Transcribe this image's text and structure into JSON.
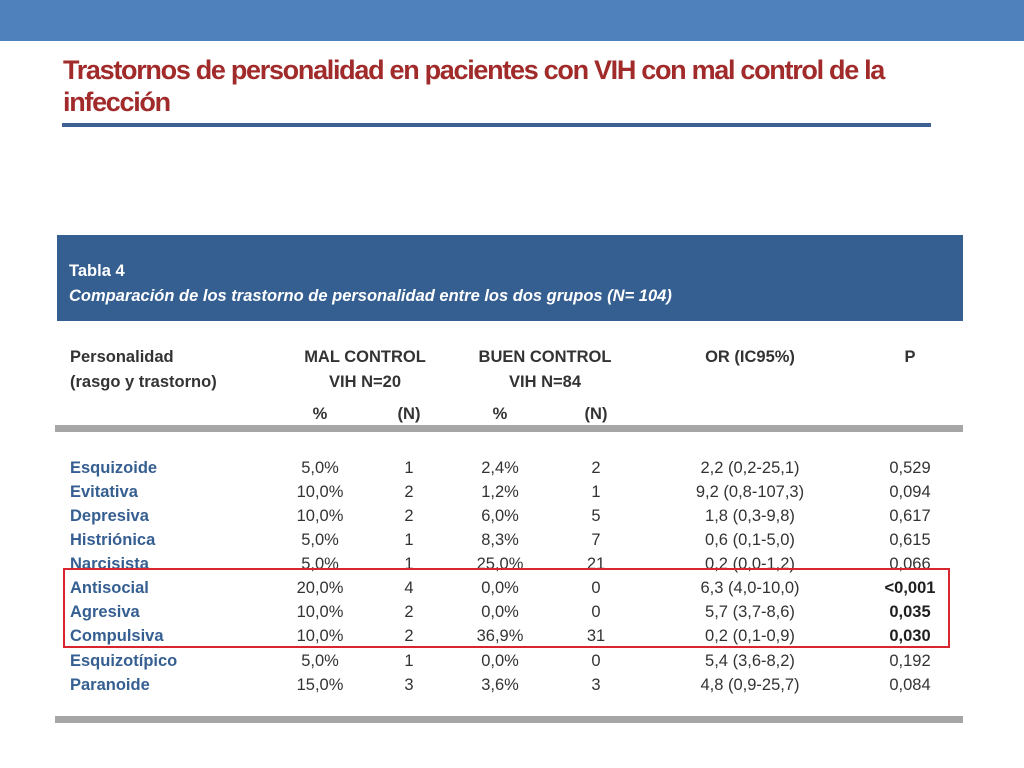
{
  "slide": {
    "title": "Trastornos de personalidad en pacientes con VIH con mal control de la infección"
  },
  "table": {
    "label": "Tabla 4",
    "caption": "Comparación de los trastorno de personalidad entre los dos grupos (N= 104)",
    "headers": {
      "col1_line1": "Personalidad",
      "col1_line2": "(rasgo y trastorno)",
      "mal_line1": "MAL CONTROL",
      "mal_line2": "VIH N=20",
      "buen_line1": "BUEN CONTROL",
      "buen_line2": "VIH N=84",
      "or": "OR (IC95%)",
      "p": "P",
      "pct1": "%",
      "n1": "(N)",
      "pct2": "%",
      "n2": "(N)"
    },
    "rows": [
      {
        "name": "Esquizoide",
        "mal_pct": "5,0%",
        "mal_n": "1",
        "buen_pct": "2,4%",
        "buen_n": "2",
        "or": "2,2 (0,2-25,1)",
        "p": "0,529"
      },
      {
        "name": "Evitativa",
        "mal_pct": "10,0%",
        "mal_n": "2",
        "buen_pct": "1,2%",
        "buen_n": "1",
        "or": "9,2 (0,8-107,3)",
        "p": "0,094"
      },
      {
        "name": "Depresiva",
        "mal_pct": "10,0%",
        "mal_n": "2",
        "buen_pct": "6,0%",
        "buen_n": "5",
        "or": "1,8 (0,3-9,8)",
        "p": "0,617"
      },
      {
        "name": "Histriónica",
        "mal_pct": "5,0%",
        "mal_n": "1",
        "buen_pct": "8,3%",
        "buen_n": "7",
        "or": "0,6 (0,1-5,0)",
        "p": "0,615"
      },
      {
        "name": "Narcisista",
        "mal_pct": "5,0%",
        "mal_n": "1",
        "buen_pct": "25,0%",
        "buen_n": "21",
        "or": "0,2 (0,0-1,2)",
        "p": "0,066"
      },
      {
        "name": "Antisocial",
        "mal_pct": "20,0%",
        "mal_n": "4",
        "buen_pct": "0,0%",
        "buen_n": "0",
        "or": "6,3 (4,0-10,0)",
        "p": "<0,001"
      },
      {
        "name": "Agresiva",
        "mal_pct": "10,0%",
        "mal_n": "2",
        "buen_pct": "0,0%",
        "buen_n": "0",
        "or": "5,7 (3,7-8,6)",
        "p": "0,035"
      },
      {
        "name": "Compulsiva",
        "mal_pct": "10,0%",
        "mal_n": "2",
        "buen_pct": "36,9%",
        "buen_n": "31",
        "or": "0,2 (0,1-0,9)",
        "p": "0,030"
      },
      {
        "name": "Esquizotípico",
        "mal_pct": "5,0%",
        "mal_n": "1",
        "buen_pct": "0,0%",
        "buen_n": "0",
        "or": "5,4 (3,6-8,2)",
        "p": "0,192"
      },
      {
        "name": "Paranoide",
        "mal_pct": "15,0%",
        "mal_n": "3",
        "buen_pct": "3,6%",
        "buen_n": "3",
        "or": "4,8 (0,9-25,7)",
        "p": "0,084"
      }
    ]
  },
  "colors": {
    "top_bar": "#4f81bd",
    "title": "#a12a2a",
    "banner": "#365f91",
    "row_label": "#365f91",
    "highlight_border": "#d9262e"
  }
}
